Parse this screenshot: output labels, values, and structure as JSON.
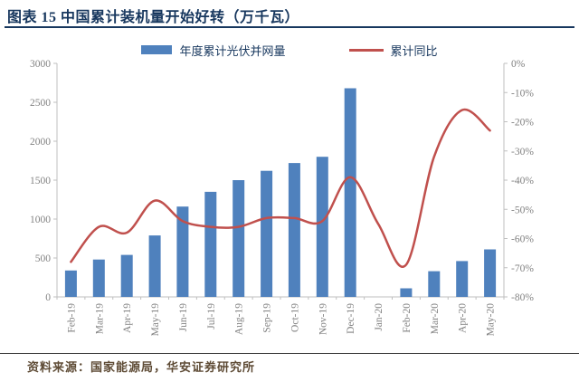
{
  "header": {
    "title": "图表 15 中国累计装机量开始好转（万千瓦）"
  },
  "footer": {
    "source": "资料来源：国家能源局，华安证券研究所"
  },
  "colors": {
    "title_navy": "#17375e",
    "bar_blue": "#4f81bd",
    "line_red": "#c0504d",
    "axis_gray": "#bfbfbf",
    "tick_label_gray": "#828282",
    "source_brown": "#5e4b35"
  },
  "chart_data": {
    "type": "bar",
    "subtype": "bar+line combo, dual y-axis",
    "title": "图表 15 中国累计装机量开始好转（万千瓦）",
    "xlabel": "",
    "ylabel_left": "万千瓦",
    "ylabel_right": "累计同比 (%)",
    "grid": false,
    "legend_position": "top-center",
    "categories": [
      "Feb-19",
      "Mar-19",
      "Apr-19",
      "May-19",
      "Jun-19",
      "Jul-19",
      "Aug-19",
      "Sep-19",
      "Oct-19",
      "Nov-19",
      "Dec-19",
      "Jan-20",
      "Feb-20",
      "Mar-20",
      "Apr-20",
      "May-20"
    ],
    "series": [
      {
        "name": "年度累计光伏并网量",
        "type": "bar",
        "axis": "left",
        "color": "#4f81bd",
        "values": [
          340,
          480,
          540,
          790,
          1160,
          1350,
          1500,
          1620,
          1720,
          1800,
          2680,
          null,
          110,
          330,
          460,
          610
        ]
      },
      {
        "name": "累计同比",
        "type": "line",
        "axis": "right",
        "color": "#c0504d",
        "values": [
          -68,
          -56,
          -58,
          -47,
          -54,
          -56,
          -56,
          -53,
          -53,
          -54,
          -39,
          -55,
          -69,
          -32,
          -16,
          -23
        ]
      }
    ],
    "left_axis": {
      "min": 0,
      "max": 3000,
      "tick_step": 500,
      "labels": [
        "0",
        "500",
        "1000",
        "1500",
        "2000",
        "2500",
        "3000"
      ]
    },
    "right_axis": {
      "min": -80,
      "max": 0,
      "tick_step": 10,
      "labels_top_to_bottom": [
        "0%",
        "-10%",
        "-20%",
        "-30%",
        "-40%",
        "-50%",
        "-60%",
        "-70%",
        "-80%"
      ]
    }
  }
}
